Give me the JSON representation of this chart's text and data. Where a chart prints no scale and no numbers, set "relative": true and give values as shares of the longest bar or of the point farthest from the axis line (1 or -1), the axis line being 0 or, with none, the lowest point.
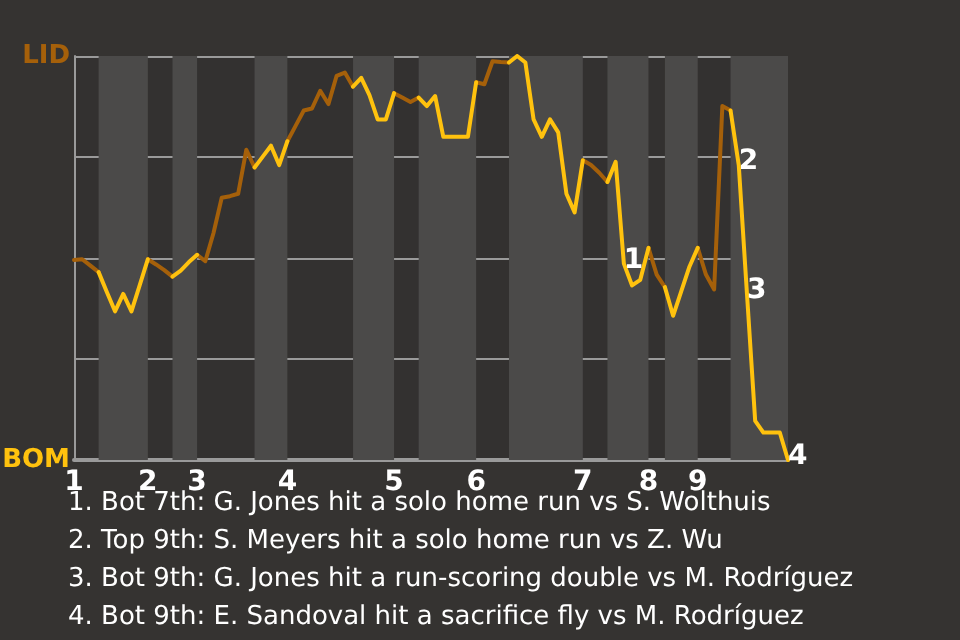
{
  "chart_data": {
    "type": "line",
    "relative": true,
    "categories": [
      "1",
      null,
      null,
      null,
      null,
      null,
      null,
      null,
      null,
      "2",
      null,
      null,
      null,
      null,
      null,
      "3",
      null,
      null,
      null,
      null,
      null,
      null,
      null,
      null,
      null,
      null,
      "4",
      null,
      null,
      null,
      null,
      null,
      null,
      null,
      null,
      null,
      null,
      null,
      null,
      "5",
      null,
      null,
      null,
      null,
      null,
      null,
      null,
      null,
      null,
      "6",
      null,
      null,
      null,
      null,
      null,
      null,
      null,
      null,
      null,
      null,
      null,
      null,
      "7",
      null,
      null,
      null,
      null,
      null,
      null,
      null,
      "8",
      null,
      null,
      null,
      null,
      null,
      "9",
      null,
      null,
      null,
      null,
      null,
      null,
      null,
      null,
      null,
      null,
      null
    ],
    "series": [
      {
        "color": "#a5600a",
        "values": [
          0.495,
          0.497,
          0.481,
          0.465,
          null,
          null,
          null,
          null,
          null,
          0.497,
          0.484,
          0.47,
          0.454,
          null,
          null,
          0.508,
          0.492,
          0.562,
          0.649,
          0.653,
          0.659,
          0.768,
          0.724,
          null,
          null,
          null,
          0.789,
          0.827,
          0.865,
          0.87,
          0.914,
          0.881,
          0.951,
          0.959,
          0.924,
          null,
          null,
          null,
          null,
          0.908,
          0.897,
          0.886,
          0.897,
          null,
          null,
          null,
          null,
          null,
          null,
          0.935,
          0.93,
          0.987,
          0.985,
          0.984,
          null,
          null,
          null,
          null,
          null,
          null,
          null,
          null,
          0.742,
          0.73,
          0.711,
          0.688,
          null,
          null,
          null,
          null,
          0.525,
          0.459,
          0.428,
          null,
          null,
          null,
          0.525,
          0.459,
          0.422,
          0.876,
          0.865,
          null,
          null,
          null,
          null,
          null,
          null,
          null
        ]
      },
      {
        "color": "#ffc20e",
        "values": [
          null,
          null,
          null,
          0.465,
          0.416,
          0.368,
          0.411,
          0.368,
          0.432,
          0.497,
          null,
          null,
          0.454,
          0.469,
          0.49,
          0.508,
          null,
          null,
          null,
          null,
          null,
          null,
          0.724,
          0.751,
          0.778,
          0.73,
          0.789,
          null,
          null,
          null,
          null,
          null,
          null,
          null,
          0.924,
          0.946,
          0.903,
          0.843,
          0.843,
          0.908,
          null,
          null,
          0.897,
          0.876,
          0.901,
          0.8,
          0.8,
          0.8,
          0.8,
          0.935,
          null,
          null,
          null,
          0.984,
          1,
          0.984,
          0.843,
          0.8,
          0.843,
          0.811,
          0.659,
          0.613,
          0.742,
          null,
          null,
          0.688,
          0.738,
          0.486,
          0.432,
          0.446,
          0.525,
          null,
          0.428,
          0.357,
          0.418,
          0.479,
          0.525,
          null,
          null,
          null,
          0.865,
          0.73,
          0.411,
          0.097,
          0.068,
          0.068,
          0.068,
          0
        ]
      }
    ],
    "grid": "y",
    "marker": "none",
    "line_style": "solid",
    "annotations": [
      "LID",
      "BOM",
      {
        "text": "1",
        "y": 0.486
      },
      {
        "text": "2",
        "y": 0.73
      },
      {
        "text": "3",
        "y": 0.411
      },
      {
        "text": "4",
        "y": 0
      },
      "1. Bot 7th: G. Jones hit a solo home run vs S. Wolthuis",
      "2. Top 9th: S. Meyers hit a solo home run vs Z. Wu",
      "3. Bot 9th: G. Jones hit a run-scoring double vs M. Rodríguez",
      "4. Bot 9th: E. Sandoval hit a sacrifice fly vs M. Rodríguez"
    ]
  }
}
